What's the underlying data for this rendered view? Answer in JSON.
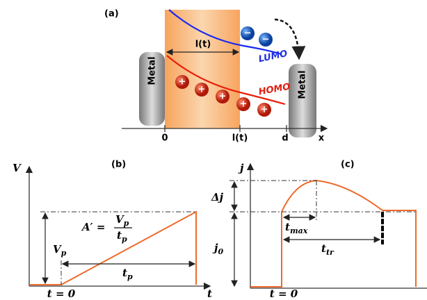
{
  "panel_a": {
    "label": "(a)",
    "metals": [
      "Metal",
      "Metal"
    ],
    "lumo": "LUMO",
    "homo": "HOMO",
    "electrons": [
      "−",
      "−"
    ],
    "holes": [
      "+",
      "+",
      "+",
      "+",
      "+"
    ],
    "width": "l(t)",
    "axis_ticks": [
      "0",
      "l(t)",
      "d"
    ],
    "axis_label": "x"
  },
  "panel_b": {
    "label": "(b)",
    "y_label": "V",
    "formula": {
      "lhs": "A′ =",
      "numerator": {
        "symbol": "V",
        "subscript": "p"
      },
      "denominator": {
        "symbol": "t",
        "subscript": "p"
      }
    },
    "amplitude": {
      "symbol": "V",
      "subscript": "p"
    },
    "duration": {
      "symbol": "t",
      "subscript": "p"
    },
    "start": "t = 0",
    "x_label": "t"
  },
  "panel_c": {
    "label": "(c)",
    "y_label": "j",
    "overshoot": "Δj",
    "plateau": {
      "symbol": "j",
      "subscript": "0"
    },
    "peak_time": {
      "symbol": "t",
      "subscript": "max"
    },
    "transit_time": {
      "symbol": "t",
      "subscript": "tr"
    },
    "start": "t = 0"
  }
}
